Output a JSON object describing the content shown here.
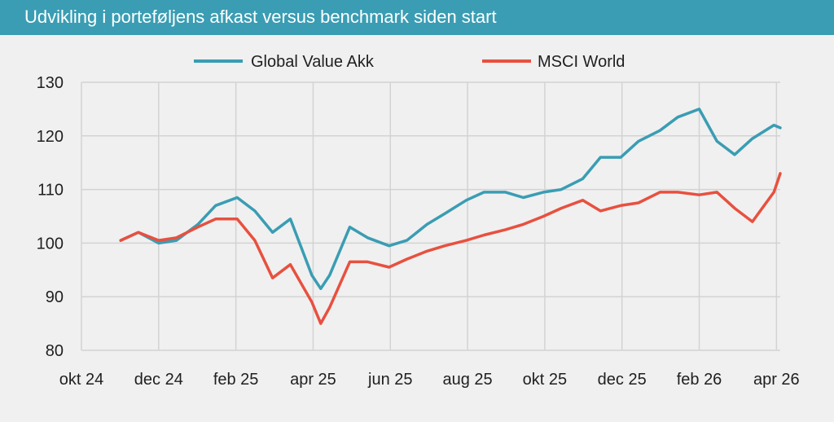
{
  "header": {
    "title": "Udvikling i porteføljens afkast versus benchmark siden start"
  },
  "chart_data": {
    "type": "line",
    "title": "Udvikling i porteføljens afkast versus benchmark siden start",
    "xlabel": "",
    "ylabel": "",
    "x_ticks": [
      "okt 24",
      "dec 24",
      "feb 25",
      "apr 25",
      "jun 25",
      "aug 25",
      "okt 25",
      "dec 25",
      "feb 26",
      "apr 26"
    ],
    "xlim": [
      "2024-10-01",
      "2026-04-06"
    ],
    "ylim": [
      80,
      130
    ],
    "y_ticks": [
      80,
      90,
      100,
      110,
      120,
      130
    ],
    "grid": true,
    "legend": "top-center",
    "series": [
      {
        "name": "Global Value Akk",
        "color": "#3a9db3",
        "x": [
          "2024-11-01",
          "2024-11-15",
          "2024-12-01",
          "2024-12-15",
          "2025-01-01",
          "2025-01-15",
          "2025-02-01",
          "2025-02-15",
          "2025-03-01",
          "2025-03-15",
          "2025-04-01",
          "2025-04-08",
          "2025-04-15",
          "2025-05-01",
          "2025-05-15",
          "2025-06-01",
          "2025-06-15",
          "2025-07-01",
          "2025-07-15",
          "2025-08-01",
          "2025-08-15",
          "2025-09-01",
          "2025-09-15",
          "2025-10-01",
          "2025-10-15",
          "2025-11-01",
          "2025-11-15",
          "2025-12-01",
          "2025-12-15",
          "2026-01-01",
          "2026-01-15",
          "2026-02-01",
          "2026-02-15",
          "2026-03-01",
          "2026-03-15",
          "2026-04-01",
          "2026-04-06"
        ],
        "values": [
          100.5,
          102,
          100,
          100.5,
          103.5,
          107,
          108.5,
          106,
          102,
          104.5,
          94,
          91.5,
          94,
          103,
          101,
          99.5,
          100.5,
          103.5,
          105.5,
          108,
          109.5,
          109.5,
          108.5,
          109.5,
          110,
          112,
          116,
          116,
          119,
          121,
          123.5,
          125,
          119,
          116.5,
          119.5,
          122,
          121.5
        ]
      },
      {
        "name": "MSCI World",
        "color": "#e8503f",
        "x": [
          "2024-11-01",
          "2024-11-15",
          "2024-12-01",
          "2024-12-15",
          "2025-01-01",
          "2025-01-15",
          "2025-02-01",
          "2025-02-15",
          "2025-03-01",
          "2025-03-15",
          "2025-04-01",
          "2025-04-08",
          "2025-04-15",
          "2025-05-01",
          "2025-05-15",
          "2025-06-01",
          "2025-06-15",
          "2025-07-01",
          "2025-07-15",
          "2025-08-01",
          "2025-08-15",
          "2025-09-01",
          "2025-09-15",
          "2025-10-01",
          "2025-10-15",
          "2025-11-01",
          "2025-11-15",
          "2025-12-01",
          "2025-12-15",
          "2026-01-01",
          "2026-01-15",
          "2026-02-01",
          "2026-02-15",
          "2026-03-01",
          "2026-03-15",
          "2026-04-01",
          "2026-04-06"
        ],
        "values": [
          100.5,
          102,
          100.5,
          101,
          103,
          104.5,
          104.5,
          100.5,
          93.5,
          96,
          89,
          85,
          88,
          96.5,
          96.5,
          95.5,
          97,
          98.5,
          99.5,
          100.5,
          101.5,
          102.5,
          103.5,
          105,
          106.5,
          108,
          106,
          107,
          107.5,
          109.5,
          109.5,
          109,
          109.5,
          106.5,
          104,
          109.5,
          113
        ]
      }
    ]
  }
}
